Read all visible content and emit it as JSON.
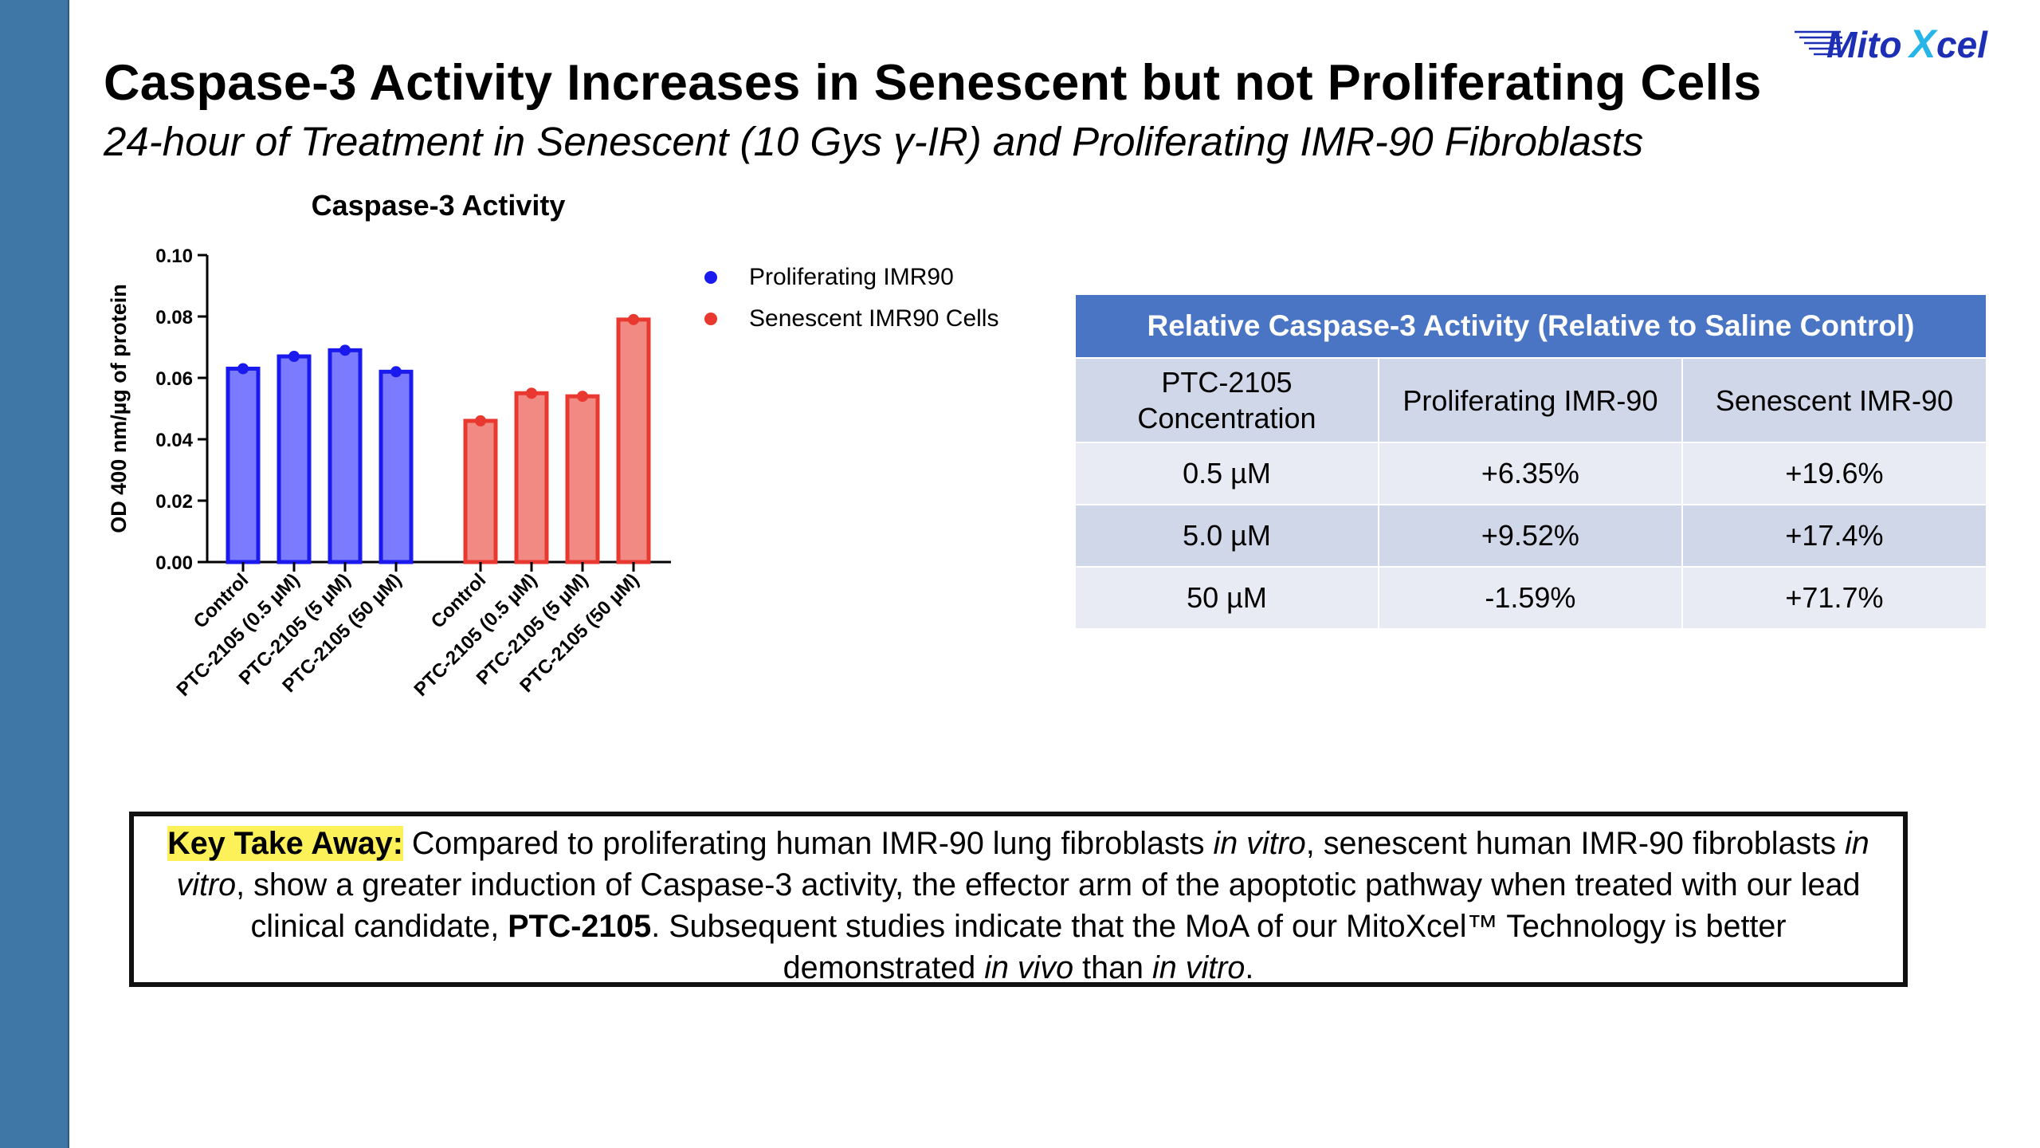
{
  "header": {
    "title": "Caspase-3 Activity Increases in Senescent but not Proliferating Cells",
    "subtitle": "24-hour of Treatment in Senescent (10 Gys γ-IR) and Proliferating IMR-90 Fibroblasts",
    "logo": "MitoXcel"
  },
  "chart_data": {
    "type": "bar",
    "title": "Caspase-3 Activity",
    "xlabel": "",
    "ylabel": "OD 400 nm/µg of protein",
    "ylim": [
      0,
      0.1
    ],
    "yticks": [
      "0.00",
      "0.02",
      "0.04",
      "0.06",
      "0.08",
      "0.10"
    ],
    "grid": false,
    "legend": "right",
    "series": [
      {
        "name": "Proliferating IMR90",
        "color": "#1a1aee",
        "fill": "#7b7bff",
        "categories": [
          "Control",
          "PTC-2105 (0.5 µM)",
          "PTC-2105 (5 µM)",
          "PTC-2105 (50 µM)"
        ],
        "values": [
          0.063,
          0.067,
          0.069,
          0.062
        ]
      },
      {
        "name": "Senescent IMR90 Cells",
        "color": "#e8382f",
        "fill": "#f08a82",
        "categories": [
          "Control",
          "PTC-2105 (0.5 µM)",
          "PTC-2105 (5 µM)",
          "PTC-2105 (50 µM)"
        ],
        "values": [
          0.046,
          0.055,
          0.054,
          0.079
        ]
      }
    ]
  },
  "table": {
    "title": "Relative Caspase-3 Activity (Relative to Saline Control)",
    "columns": [
      "PTC-2105 Concentration",
      "Proliferating IMR-90",
      "Senescent IMR-90"
    ],
    "rows": [
      [
        "0.5 µM",
        "+6.35%",
        "+19.6%"
      ],
      [
        "5.0 µM",
        "+9.52%",
        "+17.4%"
      ],
      [
        "50 µM",
        "-1.59%",
        "+71.7%"
      ]
    ]
  },
  "takeaway": {
    "label": "Key Take Away:",
    "t1": " Compared to proliferating human IMR-90 lung fibroblasts ",
    "i1": "in vitro",
    "t2": ", senescent human IMR-90 fibroblasts ",
    "i2": "in vitro",
    "t3": ", show a greater induction of Caspase-3 activity, the effector arm of the apoptotic pathway when treated with our lead clinical candidate, ",
    "b1": "PTC-2105",
    "t4": ". Subsequent studies indicate that the MoA of our MitoXcel™ Technology is better demonstrated ",
    "i3": "in vivo",
    "t5": " than ",
    "i4": "in vitro",
    "t6": "."
  }
}
